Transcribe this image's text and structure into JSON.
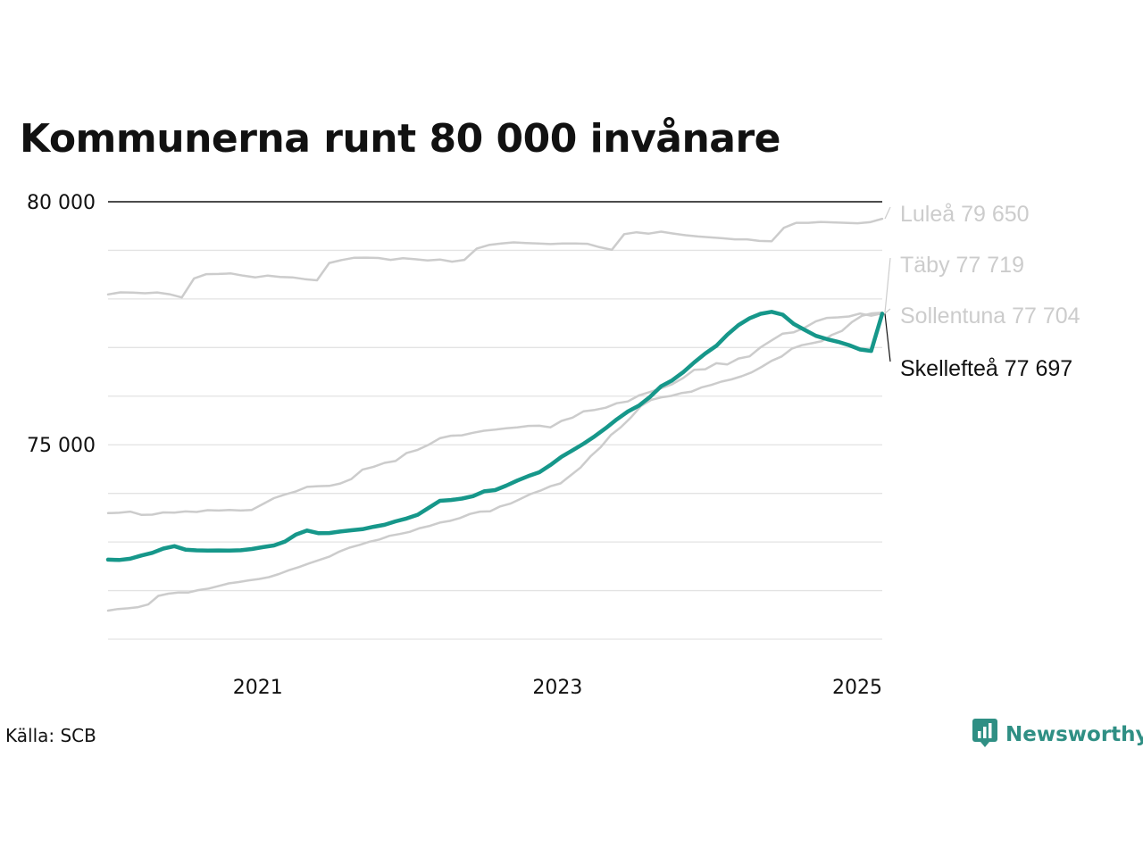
{
  "title": "Kommunerna runt 80 000 invånare",
  "source": "Källa: SCB",
  "logo_text": "Newsworthy",
  "colors": {
    "highlight": "#16978a",
    "context": "#cccccc",
    "grid": "#e3e3e3",
    "text": "#111111",
    "label_gray": "#cccccc",
    "logo": "#2f8f84"
  },
  "icons": {
    "logo": "newsworthy-logo-icon"
  },
  "chart_data": {
    "type": "line",
    "title": "Kommunerna runt 80 000 invånare",
    "x_start": "2020-01",
    "x_end": "2025-03",
    "x_tick_labels": [
      {
        "date": "2021-01",
        "label": "2021"
      },
      {
        "date": "2023-01",
        "label": "2023"
      },
      {
        "date": "2025-01",
        "label": "2025"
      }
    ],
    "ylim": [
      71000,
      80000
    ],
    "y_gridlines": [
      71000,
      72000,
      73000,
      74000,
      75000,
      76000,
      77000,
      78000,
      79000,
      80000
    ],
    "y_tick_labels": [
      {
        "value": 80000,
        "label": "80 000"
      },
      {
        "value": 75000,
        "label": "75 000"
      }
    ],
    "series": [
      {
        "name": "Luleå",
        "label": "Luleå 79 650",
        "highlight": false,
        "values": [
          78094,
          78135,
          78130,
          78117,
          78134,
          78098,
          78031,
          78422,
          78510,
          78514,
          78526,
          78479,
          78445,
          78481,
          78452,
          78444,
          78408,
          78384,
          78740,
          78800,
          78846,
          78851,
          78843,
          78805,
          78838,
          78817,
          78794,
          78811,
          78767,
          78805,
          79038,
          79111,
          79143,
          79165,
          79150,
          79140,
          79129,
          79142,
          79141,
          79134,
          79065,
          79012,
          79334,
          79371,
          79345,
          79384,
          79346,
          79311,
          79285,
          79267,
          79248,
          79227,
          79226,
          79193,
          79187,
          79466,
          79566,
          79566,
          79584,
          79575,
          79566,
          79558,
          79579,
          79650
        ]
      },
      {
        "name": "Täby",
        "label": "Täby 77 719",
        "highlight": false,
        "values": [
          71587,
          71621,
          71635,
          71659,
          71714,
          71890,
          71936,
          71959,
          71960,
          72011,
          72042,
          72095,
          72148,
          72176,
          72211,
          72238,
          72276,
          72341,
          72419,
          72484,
          72559,
          72629,
          72697,
          72801,
          72882,
          72940,
          73005,
          73051,
          73127,
          73164,
          73207,
          73284,
          73330,
          73398,
          73433,
          73492,
          73577,
          73625,
          73630,
          73731,
          73788,
          73884,
          73985,
          74057,
          74146,
          74205,
          74369,
          74532,
          74765,
          74951,
          75199,
          75361,
          75561,
          75797,
          75923,
          75974,
          76005,
          76062,
          76092,
          76177,
          76231,
          76299,
          76345,
          76410,
          76488,
          76602,
          76727,
          76817,
          76976,
          77049,
          77088,
          77133,
          77262,
          77345,
          77526,
          77656,
          77704,
          77719
        ]
      },
      {
        "name": "Sollentuna",
        "label": "Sollentuna 77 704",
        "highlight": false,
        "values": [
          73593,
          73600,
          73624,
          73559,
          73563,
          73608,
          73604,
          73628,
          73617,
          73654,
          73647,
          73659,
          73646,
          73659,
          73781,
          73902,
          73977,
          74041,
          74133,
          74148,
          74154,
          74204,
          74296,
          74488,
          74546,
          74628,
          74667,
          74831,
          74896,
          75002,
          75134,
          75185,
          75196,
          75247,
          75289,
          75311,
          75340,
          75358,
          75388,
          75391,
          75358,
          75491,
          75559,
          75689,
          75717,
          75762,
          75855,
          75891,
          76014,
          76086,
          76162,
          76246,
          76375,
          76542,
          76555,
          76678,
          76654,
          76775,
          76819,
          77007,
          77148,
          77287,
          77315,
          77410,
          77541,
          77610,
          77621,
          77640,
          77700,
          77654,
          77704
        ]
      },
      {
        "name": "Skellefteå",
        "label": "Skellefteå 77 697",
        "highlight": true,
        "values": [
          72636,
          72630,
          72654,
          72721,
          72776,
          72865,
          72914,
          72843,
          72827,
          72824,
          72826,
          72822,
          72829,
          72856,
          72893,
          72928,
          73010,
          73154,
          73236,
          73182,
          73184,
          73215,
          73241,
          73263,
          73313,
          73353,
          73425,
          73483,
          73560,
          73704,
          73847,
          73864,
          73893,
          73942,
          74041,
          74068,
          74160,
          74264,
          74356,
          74434,
          74584,
          74752,
          74886,
          75022,
          75174,
          75342,
          75522,
          75684,
          75804,
          75985,
          76204,
          76325,
          76494,
          76693,
          76877,
          77035,
          77267,
          77462,
          77601,
          77694,
          77735,
          77677,
          77486,
          77362,
          77242,
          77174,
          77119,
          77051,
          76960,
          76930,
          77697
        ]
      }
    ]
  }
}
